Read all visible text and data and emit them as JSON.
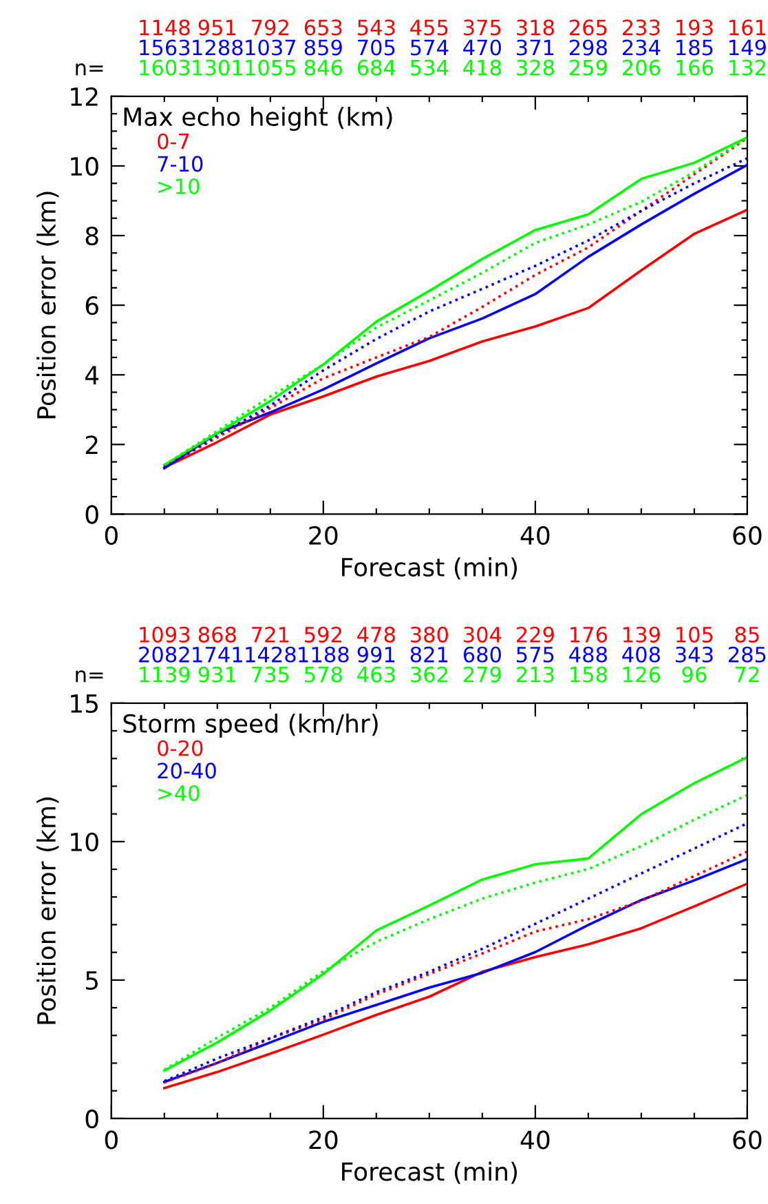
{
  "chart_data": [
    {
      "type": "line",
      "xlabel": "Forecast (min)",
      "ylabel": "Position error (km)",
      "legend_title": "Max echo height (km)",
      "legend": "top left",
      "grid": false,
      "x": [
        5,
        10,
        15,
        20,
        25,
        30,
        35,
        40,
        45,
        50,
        55,
        60
      ],
      "xlim": [
        0,
        60
      ],
      "xticks": [
        0,
        {
          "value": 5,
          "label": null
        },
        {
          "value": 10,
          "label": null
        },
        {
          "value": 15,
          "label": null
        },
        20,
        {
          "value": 25,
          "label": null
        },
        {
          "value": 30,
          "label": null
        },
        {
          "value": 35,
          "label": null
        },
        40,
        {
          "value": 45,
          "label": null
        },
        {
          "value": 50,
          "label": null
        },
        {
          "value": 55,
          "label": null
        },
        60
      ],
      "ylim": [
        0,
        12
      ],
      "yticks": [
        0,
        {
          "value": 0.5,
          "label": null
        },
        {
          "value": 1,
          "label": null
        },
        {
          "value": 1.5,
          "label": null
        },
        2,
        {
          "value": 2.5,
          "label": null
        },
        {
          "value": 3,
          "label": null
        },
        {
          "value": 3.5,
          "label": null
        },
        4,
        {
          "value": 4.5,
          "label": null
        },
        {
          "value": 5,
          "label": null
        },
        {
          "value": 5.5,
          "label": null
        },
        6,
        {
          "value": 6.5,
          "label": null
        },
        {
          "value": 7,
          "label": null
        },
        {
          "value": 7.5,
          "label": null
        },
        8,
        {
          "value": 8.5,
          "label": null
        },
        {
          "value": 9,
          "label": null
        },
        {
          "value": 9.5,
          "label": null
        },
        10,
        {
          "value": 10.5,
          "label": null
        },
        {
          "value": 11,
          "label": null
        },
        {
          "value": 11.5,
          "label": null
        },
        12
      ],
      "series": [
        {
          "name": "0-7",
          "color": "#ff0000",
          "line_style": "solid",
          "values": [
            1.34,
            2.07,
            2.86,
            3.38,
            3.95,
            4.4,
            4.96,
            5.39,
            5.92,
            7.0,
            8.05,
            8.74
          ]
        },
        {
          "name": "7-10",
          "color": "#0000ff",
          "line_style": "solid",
          "values": [
            1.32,
            2.33,
            2.92,
            3.58,
            4.33,
            5.05,
            5.62,
            6.32,
            7.39,
            8.32,
            9.2,
            10.03
          ]
        },
        {
          "name": ">10",
          "color": "#00ff00",
          "line_style": "solid",
          "values": [
            1.41,
            2.33,
            3.25,
            4.3,
            5.53,
            6.41,
            7.33,
            8.16,
            8.61,
            9.63,
            10.09,
            10.82
          ]
        },
        {
          "color": "#ff0000",
          "line_style": "dotted",
          "values": [
            1.37,
            2.2,
            3.05,
            3.9,
            4.5,
            5.09,
            5.95,
            6.87,
            7.66,
            8.71,
            9.76,
            10.8
          ]
        },
        {
          "color": "#0000ff",
          "line_style": "dotted",
          "values": [
            1.34,
            2.26,
            3.12,
            4.13,
            5.03,
            5.82,
            6.47,
            7.13,
            7.86,
            8.71,
            9.5,
            10.22
          ]
        },
        {
          "color": "#00ff00",
          "line_style": "dotted",
          "values": [
            1.41,
            2.39,
            3.38,
            4.3,
            5.36,
            6.14,
            6.93,
            7.79,
            8.32,
            8.97,
            9.83,
            10.82
          ]
        }
      ],
      "annotations": [
        "n=",
        "1148",
        "951",
        "792",
        "653",
        "543",
        "455",
        "375",
        "318",
        "265",
        "233",
        "193",
        "161",
        "1563",
        "1288",
        "1037",
        "859",
        "705",
        "574",
        "470",
        "371",
        "298",
        "234",
        "185",
        "149",
        "1603",
        "1301",
        "1055",
        "846",
        "684",
        "534",
        "418",
        "328",
        "259",
        "206",
        "166",
        "132"
      ]
    },
    {
      "type": "line",
      "xlabel": "Forecast (min)",
      "ylabel": "Position error (km)",
      "legend_title": "Storm speed (km/hr)",
      "legend": "top left",
      "grid": false,
      "x": [
        5,
        10,
        15,
        20,
        25,
        30,
        35,
        40,
        45,
        50,
        55,
        60
      ],
      "xlim": [
        0,
        60
      ],
      "xticks": [
        0,
        {
          "value": 5,
          "label": null
        },
        {
          "value": 10,
          "label": null
        },
        {
          "value": 15,
          "label": null
        },
        20,
        {
          "value": 25,
          "label": null
        },
        {
          "value": 30,
          "label": null
        },
        {
          "value": 35,
          "label": null
        },
        40,
        {
          "value": 45,
          "label": null
        },
        {
          "value": 50,
          "label": null
        },
        {
          "value": 55,
          "label": null
        },
        60
      ],
      "ylim": [
        0,
        15
      ],
      "yticks": [
        0,
        {
          "value": 1,
          "label": null
        },
        {
          "value": 2,
          "label": null
        },
        {
          "value": 3,
          "label": null
        },
        {
          "value": 4,
          "label": null
        },
        5,
        {
          "value": 6,
          "label": null
        },
        {
          "value": 7,
          "label": null
        },
        {
          "value": 8,
          "label": null
        },
        {
          "value": 9,
          "label": null
        },
        10,
        {
          "value": 11,
          "label": null
        },
        {
          "value": 12,
          "label": null
        },
        {
          "value": 13,
          "label": null
        },
        {
          "value": 14,
          "label": null
        },
        15
      ],
      "series": [
        {
          "name": "0-20",
          "color": "#ff0000",
          "line_style": "solid",
          "values": [
            1.1,
            1.68,
            2.34,
            3.03,
            3.74,
            4.4,
            5.3,
            5.83,
            6.29,
            6.87,
            7.66,
            8.48
          ]
        },
        {
          "name": "20-40",
          "color": "#0000ff",
          "line_style": "solid",
          "values": [
            1.32,
            2.01,
            2.75,
            3.49,
            4.1,
            4.73,
            5.26,
            6.01,
            6.99,
            7.89,
            8.6,
            9.37
          ]
        },
        {
          "name": ">40",
          "color": "#00ff00",
          "line_style": "solid",
          "values": [
            1.73,
            2.75,
            3.9,
            5.22,
            6.79,
            7.69,
            8.63,
            9.18,
            9.39,
            10.99,
            12.11,
            13.05
          ]
        },
        {
          "color": "#ff0000",
          "line_style": "dotted",
          "values": [
            1.3,
            2.0,
            2.9,
            3.57,
            4.48,
            5.22,
            5.96,
            6.75,
            7.2,
            7.86,
            8.76,
            9.64
          ]
        },
        {
          "color": "#0000ff",
          "line_style": "dotted",
          "values": [
            1.35,
            2.17,
            2.9,
            3.66,
            4.56,
            5.3,
            6.13,
            7.03,
            7.94,
            8.85,
            9.75,
            10.66
          ]
        },
        {
          "color": "#00ff00",
          "line_style": "dotted",
          "values": [
            1.76,
            2.92,
            4.0,
            5.32,
            6.38,
            7.2,
            7.94,
            8.52,
            9.01,
            9.84,
            10.79,
            11.68
          ]
        }
      ],
      "annotations": [
        "n=",
        "1093",
        "868",
        "721",
        "592",
        "478",
        "380",
        "304",
        "229",
        "176",
        "139",
        "105",
        "85",
        "2082",
        "1741",
        "1428",
        "1188",
        "991",
        "821",
        "680",
        "575",
        "488",
        "408",
        "343",
        "285",
        "1139",
        "931",
        "735",
        "578",
        "463",
        "362",
        "279",
        "213",
        "158",
        "126",
        "96",
        "72"
      ]
    }
  ]
}
